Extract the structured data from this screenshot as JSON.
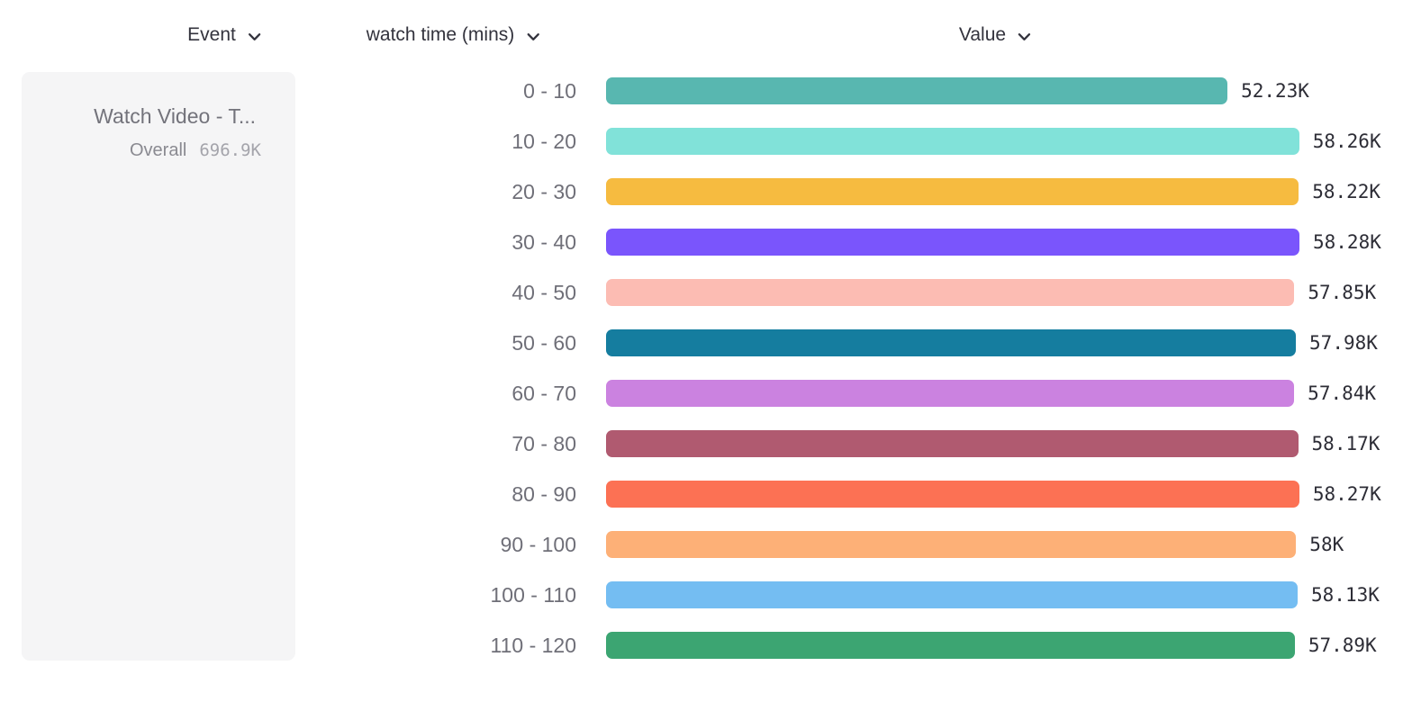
{
  "header": {
    "columns": [
      {
        "id": "event",
        "label": "Event"
      },
      {
        "id": "breakdown",
        "label": "watch time (mins)"
      },
      {
        "id": "value",
        "label": "Value"
      }
    ]
  },
  "event_card": {
    "name": "Watch Video - T...",
    "overall_label": "Overall",
    "overall_value": "696.9K"
  },
  "chart_data": {
    "type": "bar",
    "orientation": "horizontal",
    "title": "",
    "xlabel": "Value",
    "ylabel": "watch time (mins)",
    "categories": [
      "0 - 10",
      "10 - 20",
      "20 - 30",
      "30 - 40",
      "40 - 50",
      "50 - 60",
      "60 - 70",
      "70 - 80",
      "80 - 90",
      "90 - 100",
      "100 - 110",
      "110 - 120"
    ],
    "values": [
      52230,
      58260,
      58220,
      58280,
      57850,
      57980,
      57840,
      58170,
      58270,
      58000,
      58130,
      57890
    ],
    "value_labels": [
      "52.23K",
      "58.26K",
      "58.22K",
      "58.28K",
      "57.85K",
      "57.98K",
      "57.84K",
      "58.17K",
      "58.27K",
      "58K",
      "58.13K",
      "57.89K"
    ],
    "bar_colors": [
      "#58b7b0",
      "#81e2d9",
      "#f6bb40",
      "#7a55fc",
      "#fcbcb3",
      "#157d9f",
      "#cb82e0",
      "#b05a70",
      "#fc7154",
      "#fdb077",
      "#74bdf2",
      "#3ca572"
    ],
    "xlim": [
      0,
      58280
    ],
    "grid": false,
    "legend_position": "left"
  }
}
